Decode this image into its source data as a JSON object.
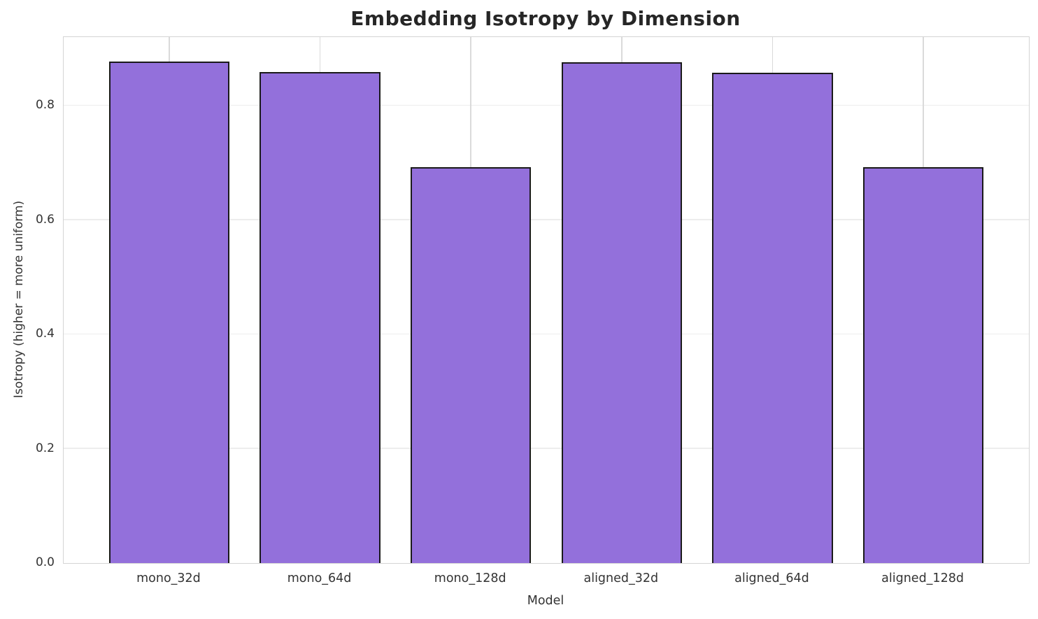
{
  "chart_data": {
    "type": "bar",
    "title": "Embedding Isotropy by Dimension",
    "xlabel": "Model",
    "ylabel": "Isotropy (higher = more uniform)",
    "categories": [
      "mono_32d",
      "mono_64d",
      "mono_128d",
      "aligned_32d",
      "aligned_64d",
      "aligned_128d"
    ],
    "values": [
      0.877,
      0.859,
      0.693,
      0.876,
      0.858,
      0.692
    ],
    "ylim": [
      0,
      0.92
    ],
    "xlim": [
      -0.7,
      5.7
    ],
    "yticks": [
      0,
      0.2,
      0.4,
      0.6,
      0.8
    ],
    "ytick_labels": [
      "0.0",
      "0.2",
      "0.4",
      "0.6",
      "0.8"
    ],
    "bar_width": 0.8,
    "bar_color": "#9370DB",
    "bar_edge_color": "#1a1a1a",
    "grid": true,
    "legend_position": "none",
    "background_color": "#ffffff"
  }
}
